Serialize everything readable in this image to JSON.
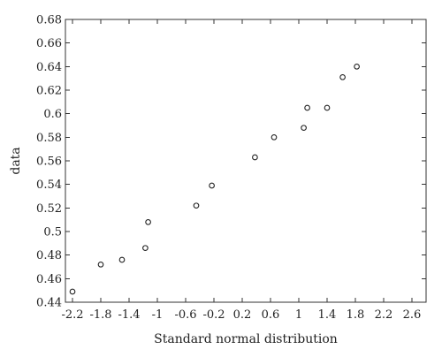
{
  "chart_data": {
    "type": "scatter",
    "title": "",
    "xlabel": "Standard normal distribution",
    "ylabel": "data",
    "xlim": [
      -2.3,
      2.8
    ],
    "ylim": [
      0.44,
      0.68
    ],
    "x_ticks": [
      -2.2,
      -1.8,
      -1.4,
      -1,
      -0.6,
      -0.2,
      0.2,
      0.6,
      1,
      1.4,
      1.8,
      2.2,
      2.6
    ],
    "x_tick_labels": [
      "-2.2",
      "-1.8",
      "-1.4",
      "-1",
      "-0.6",
      "-0.2",
      "0.2",
      "0.6",
      "1",
      "1.4",
      "1.8",
      "2.2",
      "2.6"
    ],
    "y_ticks": [
      0.44,
      0.46,
      0.48,
      0.5,
      0.52,
      0.54,
      0.56,
      0.58,
      0.6,
      0.62,
      0.64,
      0.66,
      0.68
    ],
    "y_tick_labels": [
      "0.44",
      "0.46",
      "0.48",
      "0.5",
      "0.52",
      "0.54",
      "0.56",
      "0.58",
      "0.6",
      "0.62",
      "0.64",
      "0.66",
      "0.68"
    ],
    "grid": false,
    "legend": "none",
    "marker": "open-circle",
    "series": [
      {
        "points": [
          {
            "x": -2.2,
            "y": 0.449
          },
          {
            "x": -1.8,
            "y": 0.472
          },
          {
            "x": -1.5,
            "y": 0.476
          },
          {
            "x": -1.17,
            "y": 0.486
          },
          {
            "x": -1.13,
            "y": 0.508
          },
          {
            "x": -0.45,
            "y": 0.522
          },
          {
            "x": -0.23,
            "y": 0.539
          },
          {
            "x": 0.38,
            "y": 0.563
          },
          {
            "x": 0.65,
            "y": 0.58
          },
          {
            "x": 1.07,
            "y": 0.588
          },
          {
            "x": 1.12,
            "y": 0.605
          },
          {
            "x": 1.4,
            "y": 0.605
          },
          {
            "x": 1.62,
            "y": 0.631
          },
          {
            "x": 1.82,
            "y": 0.64
          }
        ]
      }
    ]
  }
}
